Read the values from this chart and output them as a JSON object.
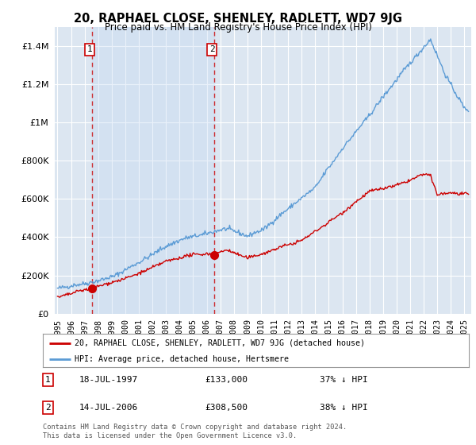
{
  "title": "20, RAPHAEL CLOSE, SHENLEY, RADLETT, WD7 9JG",
  "subtitle": "Price paid vs. HM Land Registry's House Price Index (HPI)",
  "red_label": "20, RAPHAEL CLOSE, SHENLEY, RADLETT, WD7 9JG (detached house)",
  "blue_label": "HPI: Average price, detached house, Hertsmere",
  "footer": "Contains HM Land Registry data © Crown copyright and database right 2024.\nThis data is licensed under the Open Government Licence v3.0.",
  "sale1_date": "18-JUL-1997",
  "sale1_price": 133000,
  "sale1_label": "37% ↓ HPI",
  "sale2_date": "14-JUL-2006",
  "sale2_price": 308500,
  "sale2_label": "38% ↓ HPI",
  "sale1_x": 1997.54,
  "sale2_x": 2006.54,
  "red_color": "#cc0000",
  "blue_color": "#5b9bd5",
  "shade_color": "#c5d9f1",
  "dashed_color": "#cc0000",
  "background_color": "#ffffff",
  "plot_bg_color": "#dce6f1",
  "grid_color": "#ffffff",
  "ylim_min": 0,
  "ylim_max": 1500000,
  "xlim_min": 1994.8,
  "xlim_max": 2025.5
}
